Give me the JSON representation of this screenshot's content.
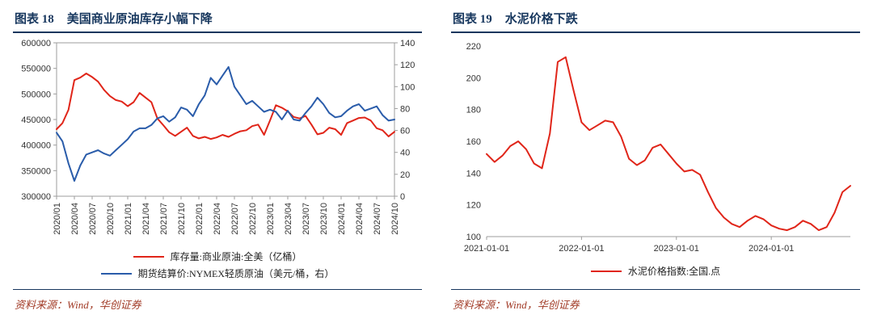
{
  "page": {
    "background": "#ffffff"
  },
  "colors": {
    "header": "#17375E",
    "source": "#A23C28",
    "axis": "#9D9D9D",
    "tick_text": "#333333",
    "red_line": "#E02519",
    "blue_line": "#2A5CAA"
  },
  "figures": [
    {
      "label": "图表 18",
      "title": "美国商业原油库存小幅下降",
      "source": "资料来源：Wind，华创证券"
    },
    {
      "label": "图表 19",
      "title": "水泥价格下跌",
      "source": "资料来源：Wind，华创证券"
    }
  ],
  "chart_data": [
    {
      "type": "line",
      "title": "美国商业原油库存小幅下降",
      "grid": false,
      "legend_position": "bottom",
      "xlabel": "",
      "ylabel": "",
      "ylim": [
        300000,
        600000
      ],
      "yticks": [
        300000,
        350000,
        400000,
        450000,
        500000,
        550000,
        600000
      ],
      "y2lim": [
        0,
        140
      ],
      "y2ticks": [
        0,
        20,
        40,
        60,
        80,
        100,
        120,
        140
      ],
      "x_tick_labels": [
        "2020/01",
        "2020/04",
        "2020/07",
        "2020/10",
        "2021/01",
        "2021/04",
        "2021/07",
        "2021/10",
        "2022/01",
        "2022/04",
        "2022/07",
        "2022/10",
        "2023/01",
        "2023/04",
        "2023/07",
        "2023/10",
        "2024/01",
        "2024/04",
        "2024/07",
        "2024/10"
      ],
      "x_tick_idx": [
        0,
        3,
        6,
        9,
        12,
        15,
        18,
        21,
        24,
        27,
        30,
        33,
        36,
        39,
        42,
        45,
        48,
        51,
        54,
        57
      ],
      "series": [
        {
          "name": "库存量:商业原油:全美（亿桶）",
          "color": "#E02519",
          "axis": "left",
          "values": [
            431000,
            443000,
            469000,
            527000,
            532000,
            540000,
            533000,
            524000,
            508000,
            496000,
            488000,
            485000,
            476000,
            484000,
            502000,
            493000,
            484000,
            452000,
            439000,
            425000,
            418000,
            426000,
            434000,
            418000,
            413000,
            416000,
            412000,
            415000,
            420000,
            416000,
            422000,
            427000,
            429000,
            437000,
            440000,
            420000,
            448000,
            478000,
            473000,
            466000,
            455000,
            452000,
            457000,
            440000,
            421000,
            424000,
            434000,
            431000,
            420000,
            443000,
            448000,
            453000,
            454000,
            448000,
            433000,
            429000,
            417000,
            426000
          ]
        },
        {
          "name": "期货结算价:NYMEX轻质原油（美元/桶，右）",
          "color": "#2A5CAA",
          "axis": "right",
          "values": [
            58,
            50,
            30,
            14,
            28,
            38,
            40,
            42,
            39,
            37,
            42,
            47,
            52,
            59,
            62,
            62,
            65,
            71,
            73,
            68,
            72,
            81,
            79,
            73,
            84,
            92,
            108,
            102,
            110,
            118,
            100,
            92,
            84,
            87,
            82,
            77,
            79,
            77,
            70,
            78,
            70,
            69,
            76,
            82,
            90,
            84,
            76,
            72,
            73,
            78,
            82,
            84,
            78,
            80,
            82,
            74,
            69,
            70
          ]
        }
      ]
    },
    {
      "type": "line",
      "title": "水泥价格下跌",
      "grid": false,
      "legend_position": "bottom",
      "xlabel": "",
      "ylabel": "",
      "ylim": [
        100,
        220
      ],
      "yticks": [
        100,
        120,
        140,
        160,
        180,
        200,
        220
      ],
      "x_tick_labels": [
        "2021-01-01",
        "2022-01-01",
        "2023-01-01",
        "2024-01-01"
      ],
      "x_tick_idx": [
        0,
        12,
        24,
        36
      ],
      "series": [
        {
          "name": "水泥价格指数:全国.点",
          "color": "#E02519",
          "axis": "left",
          "values": [
            152,
            147,
            151,
            157,
            160,
            155,
            146,
            143,
            165,
            210,
            213,
            192,
            172,
            167,
            170,
            173,
            172,
            163,
            149,
            145,
            148,
            156,
            158,
            152,
            146,
            141,
            142,
            139,
            128,
            118,
            112,
            108,
            106,
            110,
            113,
            111,
            107,
            105,
            104,
            106,
            110,
            108,
            104,
            106,
            115,
            128,
            132
          ]
        }
      ]
    }
  ]
}
